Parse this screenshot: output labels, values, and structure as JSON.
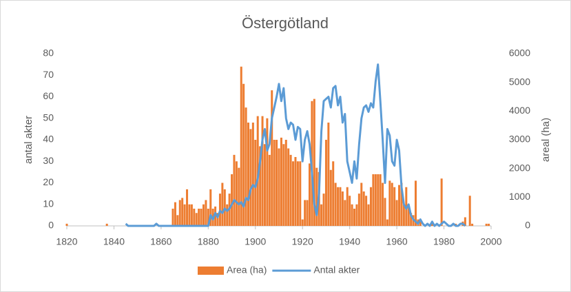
{
  "chart_data": {
    "type": "combo",
    "title": "Östergötland",
    "ylabel": "antal akter",
    "y2label": "areal (ha)",
    "xlim": [
      1820,
      2000
    ],
    "xticks": [
      1820,
      1840,
      1860,
      1880,
      1900,
      1920,
      1940,
      1960,
      1980,
      2000
    ],
    "ylim": [
      0,
      80
    ],
    "yticks": [
      0,
      10,
      20,
      30,
      40,
      50,
      60,
      70,
      80
    ],
    "y2lim": [
      0,
      6000
    ],
    "y2ticks": [
      0,
      1000,
      2000,
      3000,
      4000,
      5000,
      6000
    ],
    "grid": false,
    "legend": "bottom",
    "series": [
      {
        "name": "Area (ha)",
        "type": "bar",
        "axis": "y2",
        "color": "#ed7d31",
        "x": [
          1820,
          1837,
          1865,
          1866,
          1867,
          1868,
          1869,
          1870,
          1871,
          1872,
          1873,
          1874,
          1875,
          1876,
          1877,
          1878,
          1879,
          1880,
          1881,
          1882,
          1883,
          1884,
          1885,
          1886,
          1887,
          1888,
          1889,
          1890,
          1891,
          1892,
          1893,
          1894,
          1895,
          1896,
          1897,
          1898,
          1899,
          1900,
          1901,
          1902,
          1903,
          1904,
          1905,
          1906,
          1907,
          1908,
          1909,
          1910,
          1911,
          1912,
          1913,
          1914,
          1915,
          1916,
          1917,
          1918,
          1919,
          1920,
          1921,
          1922,
          1923,
          1924,
          1925,
          1926,
          1927,
          1928,
          1929,
          1930,
          1931,
          1932,
          1933,
          1934,
          1935,
          1936,
          1937,
          1938,
          1939,
          1940,
          1941,
          1942,
          1943,
          1944,
          1945,
          1946,
          1947,
          1948,
          1949,
          1950,
          1951,
          1952,
          1953,
          1954,
          1955,
          1956,
          1957,
          1958,
          1959,
          1960,
          1961,
          1962,
          1963,
          1964,
          1965,
          1966,
          1967,
          1968,
          1969,
          1970,
          1975,
          1979,
          1985,
          1988,
          1989,
          1991,
          1992,
          1998,
          1999
        ],
        "values": [
          75,
          75,
          600,
          825,
          375,
          900,
          975,
          750,
          1275,
          750,
          750,
          600,
          450,
          600,
          600,
          750,
          900,
          600,
          1275,
          600,
          675,
          450,
          1125,
          1500,
          1275,
          750,
          1125,
          1800,
          2475,
          2250,
          2025,
          5550,
          4950,
          4125,
          3600,
          3375,
          3600,
          3000,
          3825,
          2775,
          3825,
          2850,
          3750,
          2475,
          4725,
          3000,
          3000,
          2700,
          3075,
          2850,
          3000,
          2700,
          2475,
          2250,
          2400,
          2250,
          2250,
          225,
          900,
          900,
          2175,
          4350,
          4425,
          2025,
          1875,
          750,
          1125,
          3000,
          3600,
          1950,
          2250,
          1500,
          1350,
          1350,
          1200,
          900,
          1350,
          1050,
          750,
          600,
          750,
          1125,
          1500,
          1200,
          1050,
          750,
          1350,
          1800,
          1800,
          1800,
          1800,
          1500,
          975,
          225,
          1575,
          1500,
          1350,
          900,
          1425,
          1500,
          750,
          1350,
          675,
          450,
          375,
          1575,
          225,
          150,
          75,
          1650,
          75,
          150,
          300,
          1050,
          75,
          75,
          75
        ]
      },
      {
        "name": "Antal akter",
        "type": "line",
        "axis": "y",
        "color": "#5b9bd5",
        "x": [
          1845,
          1846,
          1847,
          1848,
          1849,
          1850,
          1851,
          1852,
          1853,
          1854,
          1855,
          1856,
          1857,
          1858,
          1859,
          1860,
          1861,
          1862,
          1863,
          1864,
          1865,
          1866,
          1867,
          1868,
          1869,
          1870,
          1871,
          1872,
          1873,
          1874,
          1875,
          1876,
          1877,
          1878,
          1879,
          1880,
          1881,
          1882,
          1883,
          1884,
          1885,
          1886,
          1887,
          1888,
          1889,
          1890,
          1891,
          1892,
          1893,
          1894,
          1895,
          1896,
          1897,
          1898,
          1899,
          1900,
          1901,
          1902,
          1903,
          1904,
          1905,
          1906,
          1907,
          1908,
          1909,
          1910,
          1911,
          1912,
          1913,
          1914,
          1915,
          1916,
          1917,
          1918,
          1919,
          1920,
          1921,
          1922,
          1923,
          1924,
          1925,
          1926,
          1927,
          1928,
          1929,
          1930,
          1931,
          1932,
          1933,
          1934,
          1935,
          1936,
          1937,
          1938,
          1939,
          1940,
          1941,
          1942,
          1943,
          1944,
          1945,
          1946,
          1947,
          1948,
          1949,
          1950,
          1951,
          1952,
          1953,
          1954,
          1955,
          1956,
          1957,
          1958,
          1959,
          1960,
          1961,
          1962,
          1963,
          1964,
          1965,
          1966,
          1967,
          1968,
          1969,
          1970,
          1971,
          1972,
          1973,
          1974,
          1975,
          1976,
          1977,
          1978,
          1979,
          1980,
          1981,
          1982,
          1983,
          1984,
          1985,
          1986,
          1987,
          1988,
          1989
        ],
        "values": [
          1,
          0,
          0,
          0,
          0,
          0,
          0,
          0,
          0,
          0,
          0,
          0,
          0,
          1,
          0,
          0,
          0,
          0,
          0,
          0,
          0,
          0,
          0,
          0,
          0,
          0,
          0,
          0,
          0,
          0,
          0,
          0,
          0,
          0,
          0,
          0,
          5,
          3,
          6,
          4,
          7,
          6,
          8,
          7,
          8,
          10,
          12,
          11,
          10,
          11,
          9,
          13,
          12,
          17,
          19,
          18,
          22,
          30,
          40,
          45,
          35,
          38,
          50,
          55,
          60,
          66,
          58,
          64,
          50,
          45,
          48,
          47,
          40,
          46,
          45,
          30,
          40,
          44,
          38,
          25,
          10,
          5,
          15,
          44,
          58,
          59,
          60,
          55,
          64,
          65,
          56,
          60,
          48,
          52,
          30,
          25,
          20,
          30,
          22,
          38,
          50,
          55,
          56,
          53,
          57,
          55,
          67,
          75,
          58,
          40,
          20,
          45,
          42,
          30,
          28,
          40,
          35,
          18,
          10,
          8,
          10,
          5,
          3,
          2,
          1,
          3,
          1,
          0,
          1,
          0,
          2,
          0,
          1,
          0,
          1,
          2,
          1,
          0,
          0,
          1,
          0,
          0,
          1,
          1,
          0
        ]
      }
    ]
  }
}
